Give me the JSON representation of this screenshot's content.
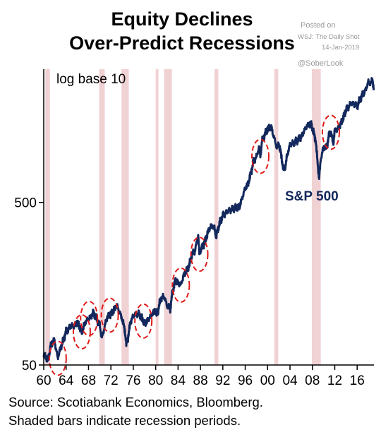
{
  "header": {
    "title_line1": "Equity Declines",
    "title_line2": "Over-Predict Recessions"
  },
  "watermark": {
    "posted": "Posted on",
    "source": "WSJ: The Daily Shot",
    "date": "14-Jan-2019",
    "handle": "@SoberLook"
  },
  "footer": {
    "line1": "Source: Scotiabank Economics, Bloomberg.",
    "line2": "Shaded bars indicate recession periods."
  },
  "colors": {
    "series": "#13285c",
    "recession": "#f1d2d4",
    "circle": "#e01b1b"
  },
  "chart_data": {
    "type": "line",
    "scale_note": "log base 10",
    "series_label": "S&P 500",
    "yscale": "log",
    "xlim": [
      1960,
      2019
    ],
    "ylim": [
      50,
      3300
    ],
    "y_ticks": [
      {
        "value": 50,
        "label": "50"
      },
      {
        "value": 500,
        "label": "500"
      }
    ],
    "x_ticks": [
      {
        "value": 1960,
        "label": "60"
      },
      {
        "value": 1964,
        "label": "64"
      },
      {
        "value": 1968,
        "label": "68"
      },
      {
        "value": 1972,
        "label": "72"
      },
      {
        "value": 1976,
        "label": "76"
      },
      {
        "value": 1980,
        "label": "80"
      },
      {
        "value": 1984,
        "label": "84"
      },
      {
        "value": 1988,
        "label": "88"
      },
      {
        "value": 1992,
        "label": "92"
      },
      {
        "value": 1996,
        "label": "96"
      },
      {
        "value": 2000,
        "label": "00"
      },
      {
        "value": 2004,
        "label": "04"
      },
      {
        "value": 2008,
        "label": "08"
      },
      {
        "value": 2012,
        "label": "12"
      },
      {
        "value": 2016,
        "label": "16"
      }
    ],
    "recessions": [
      [
        1960.3,
        1961.1
      ],
      [
        1969.9,
        1970.9
      ],
      [
        1973.9,
        1975.2
      ],
      [
        1980.0,
        1980.5
      ],
      [
        1981.5,
        1982.9
      ],
      [
        1990.5,
        1991.2
      ],
      [
        2001.2,
        2001.9
      ],
      [
        2007.9,
        2009.5
      ]
    ],
    "series": [
      {
        "x": [
          1960.0,
          1960.5,
          1960.8,
          1961.3,
          1961.9,
          1962.3,
          1962.5,
          1962.9,
          1963.5,
          1964.0,
          1965.0,
          1965.5,
          1966.0,
          1966.8,
          1967.5,
          1967.9,
          1968.5,
          1968.9,
          1969.5,
          1970.0,
          1970.4,
          1970.8,
          1971.3,
          1971.9,
          1972.5,
          1973.0,
          1973.5,
          1974.0,
          1974.5,
          1974.75,
          1975.0,
          1975.5,
          1976.0,
          1976.5,
          1977.0,
          1977.5,
          1978.0,
          1978.4,
          1978.8,
          1979.5,
          1980.0,
          1980.2,
          1980.9,
          1981.5,
          1982.0,
          1982.6,
          1983.0,
          1983.5,
          1984.0,
          1984.5,
          1985.0,
          1985.5,
          1986.0,
          1986.5,
          1987.0,
          1987.6,
          1987.8,
          1988.0,
          1988.5,
          1989.0,
          1989.5,
          1990.0,
          1990.5,
          1990.8,
          1991.0,
          1991.5,
          1992.0,
          1993.0,
          1994.0,
          1995.0,
          1995.5,
          1996.0,
          1996.5,
          1997.0,
          1997.5,
          1998.0,
          1998.5,
          1998.7,
          1999.0,
          1999.5,
          2000.0,
          2000.7,
          2001.0,
          2001.7,
          2002.0,
          2002.5,
          2002.8,
          2003.2,
          2003.5,
          2004.0,
          2005.0,
          2006.0,
          2007.0,
          2007.8,
          2008.2,
          2008.6,
          2008.9,
          2009.2,
          2009.5,
          2010.0,
          2010.5,
          2011.0,
          2011.3,
          2011.75,
          2012.0,
          2012.5,
          2013.0,
          2013.5,
          2014.0,
          2014.5,
          2015.0,
          2015.6,
          2016.0,
          2016.5,
          2017.0,
          2017.5,
          2018.0,
          2018.5,
          2018.75,
          2018.95
        ],
        "values": [
          58,
          55,
          54,
          67,
          71,
          60,
          55,
          62,
          71,
          80,
          88,
          86,
          92,
          80,
          93,
          95,
          100,
          105,
          95,
          88,
          73,
          84,
          98,
          102,
          108,
          117,
          107,
          96,
          82,
          67,
          72,
          92,
          100,
          103,
          103,
          98,
          90,
          92,
          97,
          104,
          110,
          100,
          128,
          132,
          117,
          110,
          140,
          165,
          160,
          155,
          178,
          190,
          205,
          240,
          250,
          315,
          240,
          255,
          270,
          300,
          340,
          360,
          350,
          305,
          330,
          380,
          415,
          445,
          460,
          470,
          540,
          610,
          650,
          750,
          900,
          950,
          1100,
          960,
          1200,
          1300,
          1420,
          1450,
          1300,
          1080,
          1150,
          950,
          800,
          840,
          980,
          1130,
          1180,
          1260,
          1480,
          1520,
          1350,
          1200,
          900,
          700,
          920,
          1100,
          1080,
          1300,
          1350,
          1150,
          1400,
          1400,
          1500,
          1650,
          1850,
          1950,
          2050,
          2000,
          1950,
          2150,
          2300,
          2450,
          2750,
          2700,
          2900,
          2450
        ]
      }
    ],
    "highlighted_declines": [
      1962.5,
      1966.8,
      1968.1,
      1971.8,
      1977.8,
      1984.5,
      1987.8,
      1998.7,
      2011.3
    ]
  }
}
